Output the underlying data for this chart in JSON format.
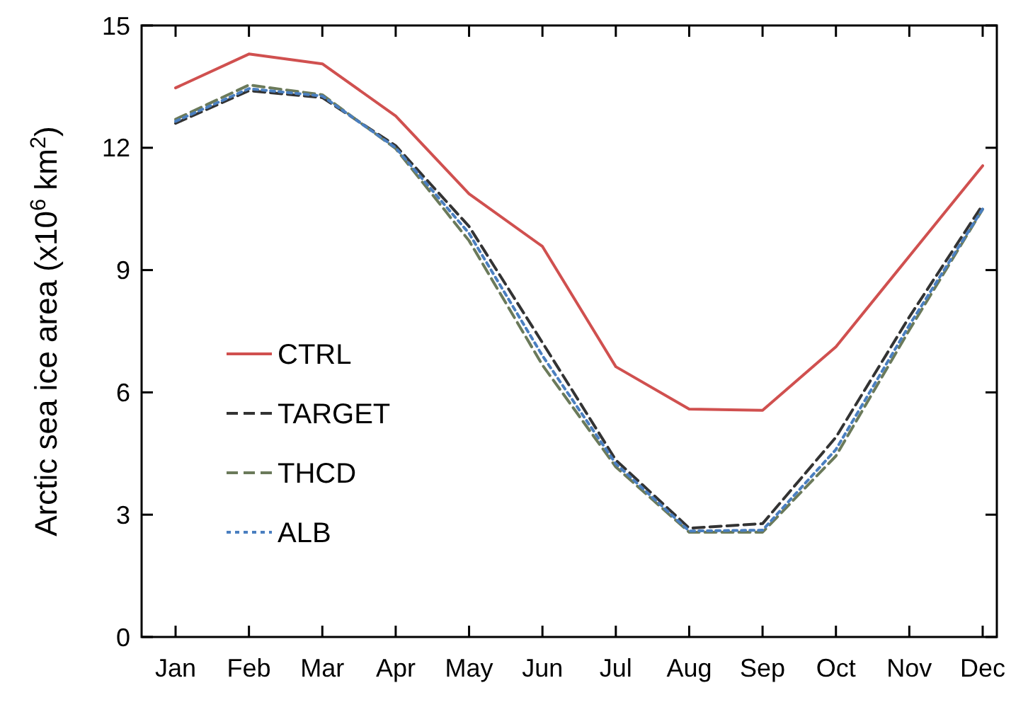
{
  "chart_data": {
    "type": "line",
    "ylabel": "Arctic sea ice area (x10$^{6}$ km$^{2}$)",
    "categories": [
      "Jan",
      "Feb",
      "Mar",
      "Apr",
      "May",
      "Jun",
      "Jul",
      "Aug",
      "Sep",
      "Oct",
      "Nov",
      "Dec"
    ],
    "ylim": [
      0,
      15
    ],
    "yticks": [
      0,
      3,
      6,
      9,
      12,
      15
    ],
    "grid": false,
    "legend": "bottom left",
    "series": [
      {
        "name": "CTRL",
        "color": "#d0504f",
        "line_style": "solid",
        "values": [
          13.47,
          14.3,
          14.06,
          12.78,
          10.87,
          9.58,
          6.63,
          5.59,
          5.56,
          7.12,
          9.34,
          11.56
        ]
      },
      {
        "name": "TARGET",
        "color": "#333333",
        "line_style": "dashed",
        "values": [
          12.6,
          13.4,
          13.23,
          12.05,
          10.07,
          7.22,
          4.34,
          2.67,
          2.78,
          4.9,
          7.85,
          10.6
        ]
      },
      {
        "name": "THCD",
        "color": "#6b7a5a",
        "line_style": "dashed",
        "values": [
          12.7,
          13.54,
          13.3,
          11.98,
          9.72,
          6.67,
          4.17,
          2.57,
          2.57,
          4.44,
          7.53,
          10.49
        ]
      },
      {
        "name": "ALB",
        "color": "#4a7fc0",
        "line_style": "dotted",
        "values": [
          12.65,
          13.45,
          13.27,
          12.0,
          9.9,
          6.9,
          4.25,
          2.6,
          2.62,
          4.6,
          7.65,
          10.5
        ]
      }
    ]
  }
}
